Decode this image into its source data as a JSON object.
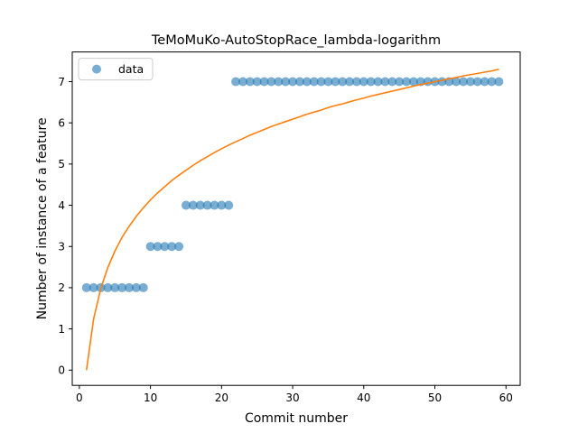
{
  "chart_data": {
    "type": "scatter",
    "title": "TeMoMuKo-AutoStopRace_lambda-logarithm",
    "xlabel": "Commit number",
    "ylabel": "Number of instance of a feature",
    "xlim": [
      -1,
      62
    ],
    "ylim": [
      -0.37,
      7.72
    ],
    "xticks": [
      0,
      10,
      20,
      30,
      40,
      50,
      60
    ],
    "yticks": [
      0,
      1,
      2,
      3,
      4,
      5,
      6,
      7
    ],
    "grid": false,
    "legend": {
      "position": "top-left",
      "entries": [
        "data"
      ]
    },
    "colors": {
      "data": "#1f77b4",
      "fit": "#ff7f0e"
    },
    "series": [
      {
        "name": "data",
        "kind": "scatter",
        "x": [
          1,
          2,
          3,
          4,
          5,
          6,
          7,
          8,
          9,
          10,
          11,
          12,
          13,
          14,
          15,
          16,
          17,
          18,
          19,
          20,
          21,
          22,
          23,
          24,
          25,
          26,
          27,
          28,
          29,
          30,
          31,
          32,
          33,
          34,
          35,
          36,
          37,
          38,
          39,
          40,
          41,
          42,
          43,
          44,
          45,
          46,
          47,
          48,
          49,
          50,
          51,
          52,
          53,
          54,
          55,
          56,
          57,
          58,
          59
        ],
        "y": [
          2,
          2,
          2,
          2,
          2,
          2,
          2,
          2,
          2,
          3,
          3,
          3,
          3,
          3,
          4,
          4,
          4,
          4,
          4,
          4,
          4,
          7,
          7,
          7,
          7,
          7,
          7,
          7,
          7,
          7,
          7,
          7,
          7,
          7,
          7,
          7,
          7,
          7,
          7,
          7,
          7,
          7,
          7,
          7,
          7,
          7,
          7,
          7,
          7,
          7,
          7,
          7,
          7,
          7,
          7,
          7,
          7,
          7,
          7
        ]
      },
      {
        "kind": "line",
        "x": [
          1,
          2,
          3,
          4,
          5,
          6,
          7,
          8,
          9,
          10,
          11,
          12,
          13,
          14,
          15,
          16,
          17,
          18,
          19,
          20,
          21,
          22,
          23,
          24,
          25,
          26,
          27,
          28,
          29,
          30,
          31,
          32,
          33,
          34,
          35,
          36,
          37,
          38,
          39,
          40,
          41,
          42,
          43,
          44,
          45,
          46,
          47,
          48,
          49,
          50,
          51,
          52,
          53,
          54,
          55,
          56,
          57,
          58,
          59
        ],
        "y": [
          0,
          1.24,
          1.97,
          2.49,
          2.89,
          3.22,
          3.49,
          3.73,
          3.94,
          4.13,
          4.3,
          4.45,
          4.6,
          4.73,
          4.85,
          4.97,
          5.08,
          5.18,
          5.28,
          5.37,
          5.46,
          5.54,
          5.62,
          5.7,
          5.77,
          5.84,
          5.91,
          5.97,
          6.03,
          6.09,
          6.15,
          6.21,
          6.26,
          6.31,
          6.37,
          6.42,
          6.46,
          6.51,
          6.56,
          6.6,
          6.65,
          6.69,
          6.73,
          6.77,
          6.81,
          6.85,
          6.89,
          6.93,
          6.96,
          7.0,
          7.03,
          7.07,
          7.1,
          7.14,
          7.17,
          7.2,
          7.23,
          7.26,
          7.3
        ]
      }
    ]
  }
}
